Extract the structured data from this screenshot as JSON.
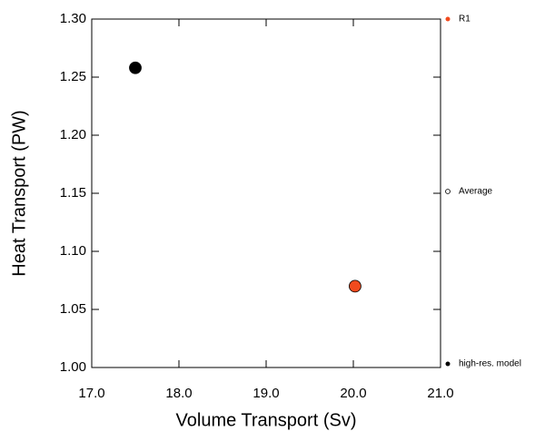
{
  "chart_data": {
    "type": "scatter",
    "x_label": "Volume Transport (Sv)",
    "y_label": "Heat Transport (PW)",
    "xlim": [
      17,
      21
    ],
    "ylim": [
      1.0,
      1.3
    ],
    "xticks": [
      {
        "value": 17,
        "label": "17.0"
      },
      {
        "value": 18,
        "label": "18.0"
      },
      {
        "value": 19,
        "label": "19.0"
      },
      {
        "value": 20,
        "label": "20.0"
      },
      {
        "value": 21,
        "label": "21.0"
      }
    ],
    "yticks": [
      {
        "value": 1.0,
        "label": "1.00"
      },
      {
        "value": 1.05,
        "label": "1.05"
      },
      {
        "value": 1.1,
        "label": "1.10"
      },
      {
        "value": 1.15,
        "label": "1.15"
      },
      {
        "value": 1.2,
        "label": "1.20"
      },
      {
        "value": 1.25,
        "label": "1.25"
      },
      {
        "value": 1.3,
        "label": "1.30"
      }
    ],
    "series": [
      {
        "name": "R1",
        "color": "#f24a1d",
        "marker": "filled",
        "x": [
          20.02
        ],
        "values": [
          1.07
        ]
      },
      {
        "name": "Average",
        "color": "#000000",
        "marker": "open",
        "x": [],
        "values": []
      },
      {
        "name": "high-res. model",
        "color": "#000000",
        "marker": "filled",
        "x": [
          17.5
        ],
        "values": [
          1.258
        ]
      }
    ]
  }
}
